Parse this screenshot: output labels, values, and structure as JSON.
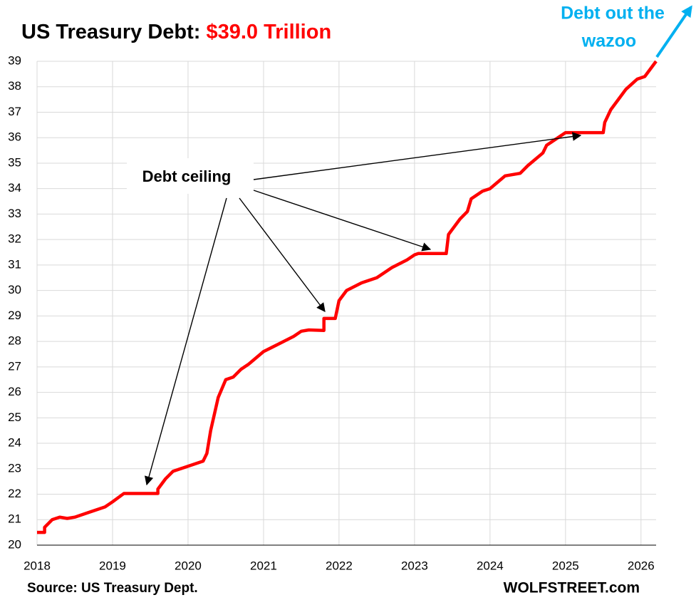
{
  "chart_data": {
    "type": "line",
    "title": "US Treasury Debt:",
    "title_value": "$39.0 Trillion",
    "annotations": [
      "Debt ceiling",
      "Debt out the",
      "wazoo"
    ],
    "source": "Source: US Treasury Dept.",
    "credit": "WOLFSTREET.com",
    "x": [
      2018.0,
      2018.1,
      2018.1,
      2018.2,
      2018.3,
      2018.4,
      2018.5,
      2018.7,
      2018.9,
      2019.0,
      2019.15,
      2019.6,
      2019.6,
      2019.7,
      2019.8,
      2020.0,
      2020.2,
      2020.25,
      2020.3,
      2020.4,
      2020.5,
      2020.6,
      2020.7,
      2020.8,
      2021.0,
      2021.2,
      2021.4,
      2021.5,
      2021.6,
      2021.8,
      2021.8,
      2021.95,
      2022.0,
      2022.1,
      2022.3,
      2022.5,
      2022.7,
      2022.9,
      2023.0,
      2023.05,
      2023.42,
      2023.45,
      2023.6,
      2023.7,
      2023.75,
      2023.9,
      2024.0,
      2024.2,
      2024.4,
      2024.5,
      2024.7,
      2024.75,
      2024.9,
      2025.0,
      2025.1,
      2025.5,
      2025.52,
      2025.6,
      2025.7,
      2025.8,
      2025.95,
      2026.05,
      2026.2
    ],
    "values": [
      20.5,
      20.5,
      20.7,
      21.0,
      21.1,
      21.05,
      21.1,
      21.3,
      21.5,
      21.7,
      22.03,
      22.03,
      22.2,
      22.6,
      22.9,
      23.1,
      23.3,
      23.6,
      24.5,
      25.8,
      26.5,
      26.6,
      26.9,
      27.1,
      27.6,
      27.9,
      28.2,
      28.4,
      28.45,
      28.43,
      28.9,
      28.9,
      29.6,
      30.0,
      30.3,
      30.5,
      30.9,
      31.2,
      31.4,
      31.45,
      31.45,
      32.2,
      32.8,
      33.1,
      33.6,
      33.9,
      34.0,
      34.5,
      34.6,
      34.9,
      35.4,
      35.7,
      36.0,
      36.2,
      36.2,
      36.2,
      36.6,
      37.1,
      37.5,
      37.9,
      38.3,
      38.4,
      39.0
    ],
    "color": "#ff0000",
    "grid": true,
    "xlim": [
      2018,
      2026.2
    ],
    "xticks": [
      2018,
      2019,
      2020,
      2021,
      2022,
      2023,
      2024,
      2025,
      2026
    ],
    "ylim": [
      20,
      39
    ],
    "yticks": [
      20,
      21,
      22,
      23,
      24,
      25,
      26,
      27,
      28,
      29,
      30,
      31,
      32,
      33,
      34,
      35,
      36,
      37,
      38,
      39
    ]
  }
}
